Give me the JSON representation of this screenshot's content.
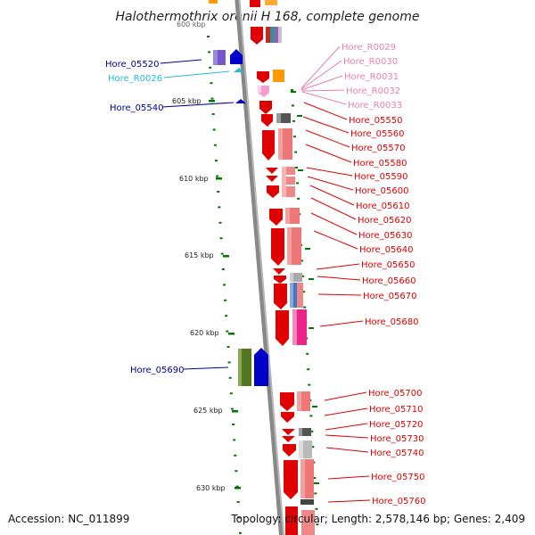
{
  "title": "Halothermothrix orenii H 168, complete genome",
  "accession": "Accession: NC_011899",
  "topology": "Topology: circular; Length: 2,578,146 bp; Genes: 2,409",
  "colors": {
    "protein": "#e00000",
    "rna": "#e880b0",
    "left_blue": "#000099",
    "left_cyan": "#22bbdd",
    "grid": "#007700",
    "backbone": "#888888"
  },
  "ticks": [
    "605 kbp",
    "610 kbp",
    "615 kbp",
    "620 kbp",
    "625 kbp",
    "630 kbp"
  ],
  "top_tick_fragment": "600 kbp",
  "left_labels": [
    {
      "text": "Hore_05520",
      "kind": "protein"
    },
    {
      "text": "Hore_R0026",
      "kind": "rna"
    },
    {
      "text": "Hore_05540",
      "kind": "protein"
    },
    {
      "text": "Hore_05690",
      "kind": "protein"
    }
  ],
  "right_rna_labels": [
    "Hore_R0029",
    "Hore_R0030",
    "Hore_R0031",
    "Hore_R0032",
    "Hore_R0033"
  ],
  "right_labels": [
    "Hore_05550",
    "Hore_05560",
    "Hore_05570",
    "Hore_05580",
    "Hore_05590",
    "Hore_05600",
    "Hore_05610",
    "Hore_05620",
    "Hore_05630",
    "Hore_05640",
    "Hore_05650",
    "Hore_05660",
    "Hore_05670",
    "Hore_05680",
    "Hore_05700",
    "Hore_05710",
    "Hore_05720",
    "Hore_05730",
    "Hore_05740",
    "Hore_05750",
    "Hore_05760"
  ]
}
